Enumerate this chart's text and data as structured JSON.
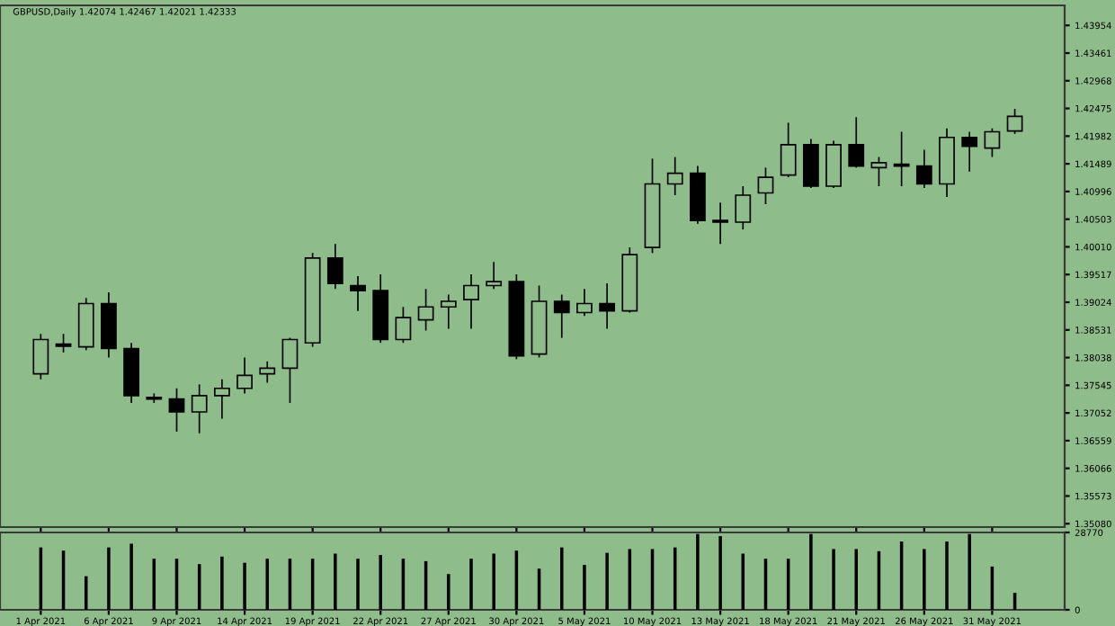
{
  "chart_data": [
    {
      "type": "candlestick",
      "title": "GBPUSD,Daily 1.42074 1.42467 1.42021 1.42333",
      "ohlc": [
        [
          1.3775,
          1.3846,
          1.3765,
          1.3836
        ],
        [
          1.3828,
          1.3846,
          1.3813,
          1.3824
        ],
        [
          1.3823,
          1.391,
          1.3817,
          1.39
        ],
        [
          1.39,
          1.392,
          1.3804,
          1.382
        ],
        [
          1.382,
          1.383,
          1.3723,
          1.3736
        ],
        [
          1.3733,
          1.374,
          1.3723,
          1.373
        ],
        [
          1.373,
          1.3749,
          1.3672,
          1.3707
        ],
        [
          1.3707,
          1.3756,
          1.3669,
          1.3736
        ],
        [
          1.3736,
          1.3765,
          1.3695,
          1.3749
        ],
        [
          1.3749,
          1.3804,
          1.374,
          1.3772
        ],
        [
          1.3775,
          1.3797,
          1.3759,
          1.3785
        ],
        [
          1.3785,
          1.3839,
          1.3723,
          1.3836
        ],
        [
          1.383,
          1.399,
          1.3823,
          1.3981
        ],
        [
          1.3981,
          1.4006,
          1.3926,
          1.3936
        ],
        [
          1.3932,
          1.3949,
          1.3887,
          1.3923
        ],
        [
          1.3923,
          1.3952,
          1.383,
          1.3836
        ],
        [
          1.3836,
          1.3894,
          1.383,
          1.3875
        ],
        [
          1.3871,
          1.3926,
          1.3852,
          1.3894
        ],
        [
          1.3894,
          1.3916,
          1.3855,
          1.3904
        ],
        [
          1.3907,
          1.3952,
          1.3855,
          1.3932
        ],
        [
          1.3932,
          1.3974,
          1.3926,
          1.3939
        ],
        [
          1.3939,
          1.3952,
          1.3801,
          1.3807
        ],
        [
          1.381,
          1.3932,
          1.3804,
          1.3904
        ],
        [
          1.3904,
          1.3916,
          1.3839,
          1.3884
        ],
        [
          1.3884,
          1.3926,
          1.3878,
          1.39
        ],
        [
          1.39,
          1.3936,
          1.3855,
          1.3887
        ],
        [
          1.3887,
          1.4,
          1.3884,
          1.3987
        ],
        [
          1.4,
          1.4158,
          1.399,
          1.4113
        ],
        [
          1.4113,
          1.4161,
          1.4093,
          1.4132
        ],
        [
          1.4132,
          1.4145,
          1.4042,
          1.4048
        ],
        [
          1.4048,
          1.408,
          1.4006,
          1.4045
        ],
        [
          1.4045,
          1.4109,
          1.4032,
          1.4093
        ],
        [
          1.4097,
          1.4142,
          1.4077,
          1.4125
        ],
        [
          1.4129,
          1.4222,
          1.4125,
          1.4183
        ],
        [
          1.4183,
          1.4193,
          1.4106,
          1.4109
        ],
        [
          1.4109,
          1.419,
          1.4106,
          1.4183
        ],
        [
          1.4183,
          1.4232,
          1.4142,
          1.4145
        ],
        [
          1.4142,
          1.4161,
          1.4109,
          1.4151
        ],
        [
          1.4148,
          1.4206,
          1.4109,
          1.4145
        ],
        [
          1.4145,
          1.4174,
          1.4106,
          1.4113
        ],
        [
          1.4113,
          1.4212,
          1.409,
          1.4196
        ],
        [
          1.4196,
          1.4206,
          1.4135,
          1.418
        ],
        [
          1.4177,
          1.4212,
          1.4161,
          1.4206
        ],
        [
          1.42074,
          1.42467,
          1.42021,
          1.42333
        ]
      ],
      "colors": [
        "#8fbc8b",
        "#000000",
        "#8fbc8b",
        "#000000",
        "#000000",
        "#000000",
        "#000000",
        "#8fbc8b",
        "#8fbc8b",
        "#8fbc8b",
        "#8fbc8b",
        "#8fbc8b",
        "#8fbc8b",
        "#000000",
        "#000000",
        "#000000",
        "#8fbc8b",
        "#8fbc8b",
        "#8fbc8b",
        "#8fbc8b",
        "#8fbc8b",
        "#000000",
        "#8fbc8b",
        "#000000",
        "#8fbc8b",
        "#000000",
        "#8fbc8b",
        "#8fbc8b",
        "#8fbc8b",
        "#000000",
        "#000000",
        "#8fbc8b",
        "#8fbc8b",
        "#8fbc8b",
        "#000000",
        "#8fbc8b",
        "#000000",
        "#8fbc8b",
        "#000000",
        "#000000",
        "#8fbc8b",
        "#000000",
        "#8fbc8b",
        "#8fbc8b"
      ],
      "ylim": [
        1.3502,
        1.4431
      ],
      "yticks": [
        {
          "value": 1.3508,
          "label": "1.35080"
        },
        {
          "value": 1.35573,
          "label": "1.35573"
        },
        {
          "value": 1.36066,
          "label": "1.36066"
        },
        {
          "value": 1.36559,
          "label": "1.36559"
        },
        {
          "value": 1.37052,
          "label": "1.37052"
        },
        {
          "value": 1.37545,
          "label": "1.37545"
        },
        {
          "value": 1.38038,
          "label": "1.38038"
        },
        {
          "value": 1.38531,
          "label": "1.38531"
        },
        {
          "value": 1.39024,
          "label": "1.39024"
        },
        {
          "value": 1.39517,
          "label": "1.39517"
        },
        {
          "value": 1.4001,
          "label": "1.40010"
        },
        {
          "value": 1.40503,
          "label": "1.40503"
        },
        {
          "value": 1.40996,
          "label": "1.40996"
        },
        {
          "value": 1.41489,
          "label": "1.41489"
        },
        {
          "value": 1.41982,
          "label": "1.41982"
        },
        {
          "value": 1.42475,
          "label": "1.42475"
        },
        {
          "value": 1.42968,
          "label": "1.42968"
        },
        {
          "value": 1.43461,
          "label": "1.43461"
        },
        {
          "value": 1.43954,
          "label": "1.43954"
        }
      ],
      "tick_labels": "y"
    },
    {
      "type": "bar",
      "categories": [
        "1 Apr 2021",
        null,
        null,
        "6 Apr 2021",
        null,
        null,
        "9 Apr 2021",
        null,
        null,
        "14 Apr 2021",
        null,
        null,
        "19 Apr 2021",
        null,
        null,
        "22 Apr 2021",
        null,
        null,
        "27 Apr 2021",
        null,
        null,
        "30 Apr 2021",
        null,
        null,
        "5 May 2021",
        null,
        null,
        "10 May 2021",
        null,
        null,
        "13 May 2021",
        null,
        null,
        "18 May 2021",
        null,
        null,
        "21 May 2021",
        null,
        null,
        "26 May 2021",
        null,
        null,
        "31 May 2021",
        null
      ],
      "values": [
        23200,
        22000,
        12500,
        23200,
        24600,
        19000,
        19000,
        17000,
        19800,
        17500,
        19000,
        19000,
        19000,
        20900,
        19000,
        20400,
        19000,
        18100,
        13300,
        19000,
        20900,
        22000,
        15300,
        23200,
        16700,
        21200,
        22600,
        22600,
        23200,
        28200,
        27400,
        20900,
        19000,
        19000,
        28200,
        22600,
        22600,
        21800,
        25400,
        22600,
        25400,
        28200,
        16100,
        6300
      ],
      "color": "#000000",
      "ylim": [
        0,
        28770
      ],
      "yticks": [
        0,
        28770
      ]
    }
  ]
}
